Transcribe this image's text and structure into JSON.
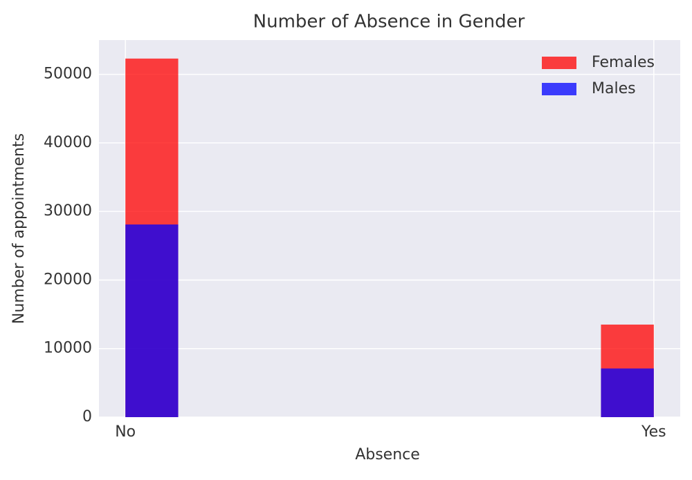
{
  "chart_data": {
    "type": "histogram",
    "title": "Number of Absence in Gender",
    "x_label": "Absence",
    "y_label": "Number of appointments",
    "bins": [
      0,
      0.1,
      0.2,
      0.3,
      0.4,
      0.5,
      0.6,
      0.7,
      0.8,
      0.9,
      1
    ],
    "series": [
      {
        "name": "Females",
        "color": "#ff0000",
        "values": [
          52300,
          0,
          0,
          0,
          0,
          0,
          0,
          0,
          0,
          13500
        ]
      },
      {
        "name": "Males",
        "color": "#0000ff",
        "values": [
          28100,
          0,
          0,
          0,
          0,
          0,
          0,
          0,
          0,
          7100
        ]
      }
    ],
    "opacity": 0.75,
    "xlim": [
      -0.05,
      1.05
    ],
    "xticks": [
      {
        "value": 0,
        "label": "No"
      },
      {
        "value": 1,
        "label": "Yes"
      }
    ],
    "ylim": [
      0,
      55000
    ],
    "yticks": [
      0,
      10000,
      20000,
      30000,
      40000,
      50000
    ],
    "grid": true,
    "legend": "upper right"
  }
}
